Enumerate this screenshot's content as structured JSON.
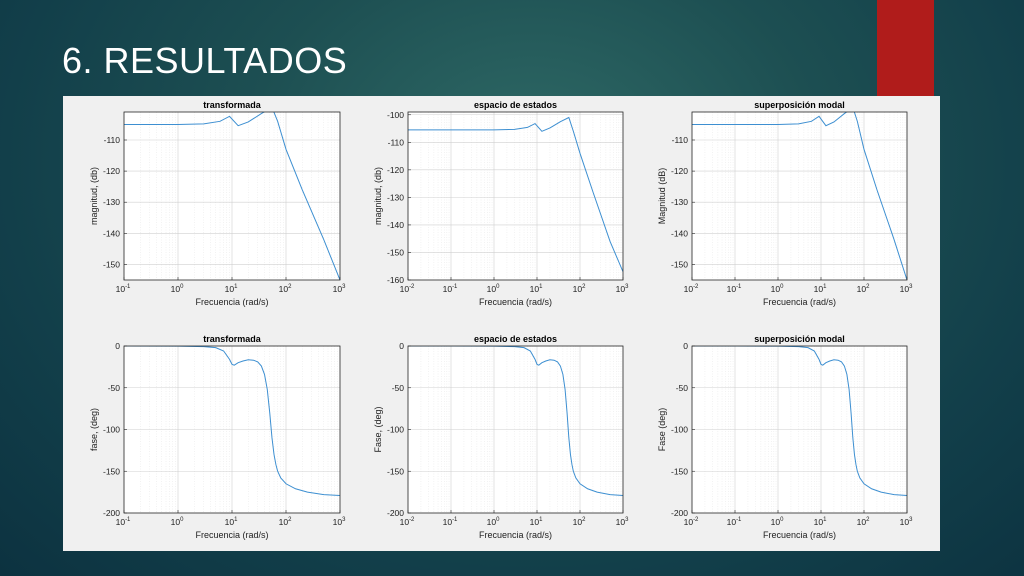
{
  "slide": {
    "title": "6. RESULTADOS"
  },
  "chart_data": [
    {
      "type": "line",
      "title": "transformada",
      "xlabel": "Frecuencia (rad/s)",
      "ylabel": "magnitud, (db)",
      "xscale": "log",
      "xlim": [
        0.1,
        1000
      ],
      "ylim": [
        -155,
        -101
      ],
      "xticks": [
        0.1,
        1,
        10,
        100,
        1000
      ],
      "yticks": [
        -150,
        -140,
        -130,
        -120,
        -110
      ],
      "grid": true,
      "line_color": "#3d8fd1",
      "series": [
        {
          "x": [
            0.1,
            1,
            3,
            6,
            9,
            13,
            20,
            35,
            55,
            70,
            100,
            200,
            500,
            1000
          ],
          "y": [
            -105,
            -105,
            -104.8,
            -104,
            -102.4,
            -105.4,
            -104.2,
            -101.5,
            -99.5,
            -104,
            -113,
            -126,
            -142,
            -155
          ]
        }
      ]
    },
    {
      "type": "line",
      "title": "espacio de estados",
      "xlabel": "Frecuencia (rad/s)",
      "ylabel": "magnitud, (db)",
      "xscale": "log",
      "xlim": [
        0.01,
        1000
      ],
      "ylim": [
        -160,
        -99
      ],
      "xticks": [
        0.01,
        0.1,
        1,
        10,
        100,
        1000
      ],
      "yticks": [
        -160,
        -150,
        -140,
        -130,
        -120,
        -110,
        -100
      ],
      "grid": true,
      "line_color": "#3d8fd1",
      "series": [
        {
          "x": [
            0.01,
            0.1,
            1,
            3,
            6,
            9,
            13,
            20,
            35,
            55,
            70,
            100,
            200,
            500,
            1000
          ],
          "y": [
            -105.5,
            -105.5,
            -105.5,
            -105.3,
            -104.6,
            -103.2,
            -106,
            -104.8,
            -102.5,
            -101,
            -106,
            -114,
            -128,
            -146,
            -157
          ]
        }
      ]
    },
    {
      "type": "line",
      "title": "superposición modal",
      "xlabel": "Frecuencia (rad/s)",
      "ylabel": "Magnitud (dB)",
      "xscale": "log",
      "xlim": [
        0.01,
        1000
      ],
      "ylim": [
        -155,
        -101
      ],
      "xticks": [
        0.01,
        0.1,
        1,
        10,
        100,
        1000
      ],
      "yticks": [
        -150,
        -140,
        -130,
        -120,
        -110
      ],
      "grid": true,
      "line_color": "#3d8fd1",
      "series": [
        {
          "x": [
            0.01,
            0.1,
            1,
            3,
            6,
            9,
            13,
            20,
            35,
            55,
            70,
            100,
            200,
            500,
            1000
          ],
          "y": [
            -105,
            -105,
            -105,
            -104.8,
            -104,
            -102.4,
            -105.4,
            -104.2,
            -101.5,
            -99.5,
            -104,
            -113,
            -126,
            -142,
            -155
          ]
        }
      ]
    },
    {
      "type": "line",
      "title": "transformada",
      "xlabel": "Frecuencia (rad/s)",
      "ylabel": "fase, (deg)",
      "xscale": "log",
      "xlim": [
        0.1,
        1000
      ],
      "ylim": [
        -200,
        0
      ],
      "xticks": [
        0.1,
        1,
        10,
        100,
        1000
      ],
      "yticks": [
        -200,
        -150,
        -100,
        -50,
        0
      ],
      "grid": true,
      "line_color": "#3d8fd1",
      "series": [
        {
          "x": [
            0.1,
            1,
            3,
            5,
            7,
            9,
            10,
            11,
            13,
            16,
            20,
            25,
            30,
            35,
            40,
            45,
            50,
            55,
            60,
            65,
            70,
            80,
            100,
            150,
            250,
            500,
            1000
          ],
          "y": [
            0,
            -0.2,
            -0.8,
            -2,
            -6,
            -16,
            -22,
            -23,
            -20,
            -18,
            -16.5,
            -17,
            -19,
            -24,
            -34,
            -52,
            -80,
            -110,
            -130,
            -142,
            -150,
            -158,
            -165,
            -171,
            -175,
            -178,
            -179
          ]
        }
      ]
    },
    {
      "type": "line",
      "title": "espacio de estados",
      "xlabel": "Frecuencia (rad/s)",
      "ylabel": "Fase, (deg)",
      "xscale": "log",
      "xlim": [
        0.01,
        1000
      ],
      "ylim": [
        -200,
        0
      ],
      "xticks": [
        0.01,
        0.1,
        1,
        10,
        100,
        1000
      ],
      "yticks": [
        -200,
        -150,
        -100,
        -50,
        0
      ],
      "grid": true,
      "line_color": "#3d8fd1",
      "series": [
        {
          "x": [
            0.01,
            0.1,
            1,
            3,
            5,
            7,
            9,
            10,
            11,
            13,
            16,
            20,
            25,
            30,
            35,
            40,
            45,
            50,
            55,
            60,
            65,
            70,
            80,
            100,
            150,
            250,
            500,
            1000
          ],
          "y": [
            0,
            0,
            -0.2,
            -0.8,
            -2,
            -6,
            -16,
            -22,
            -23,
            -20,
            -18,
            -16.5,
            -17,
            -19,
            -24,
            -34,
            -52,
            -80,
            -110,
            -130,
            -142,
            -150,
            -158,
            -165,
            -171,
            -175,
            -178,
            -179
          ]
        }
      ]
    },
    {
      "type": "line",
      "title": "superposición modal",
      "xlabel": "Frecuencia (rad/s)",
      "ylabel": "Fase (deg)",
      "xscale": "log",
      "xlim": [
        0.01,
        1000
      ],
      "ylim": [
        -200,
        0
      ],
      "xticks": [
        0.01,
        0.1,
        1,
        10,
        100,
        1000
      ],
      "yticks": [
        -200,
        -150,
        -100,
        -50,
        0
      ],
      "grid": true,
      "line_color": "#3d8fd1",
      "series": [
        {
          "x": [
            0.01,
            0.1,
            1,
            3,
            5,
            7,
            9,
            10,
            11,
            13,
            16,
            20,
            25,
            30,
            35,
            40,
            45,
            50,
            55,
            60,
            65,
            70,
            80,
            100,
            150,
            250,
            500,
            1000
          ],
          "y": [
            0,
            0,
            -0.2,
            -0.8,
            -2,
            -6,
            -16,
            -22,
            -23,
            -20,
            -18,
            -16.5,
            -17,
            -19,
            -24,
            -34,
            -52,
            -80,
            -110,
            -130,
            -142,
            -150,
            -158,
            -165,
            -171,
            -175,
            -178,
            -179
          ]
        }
      ]
    }
  ]
}
